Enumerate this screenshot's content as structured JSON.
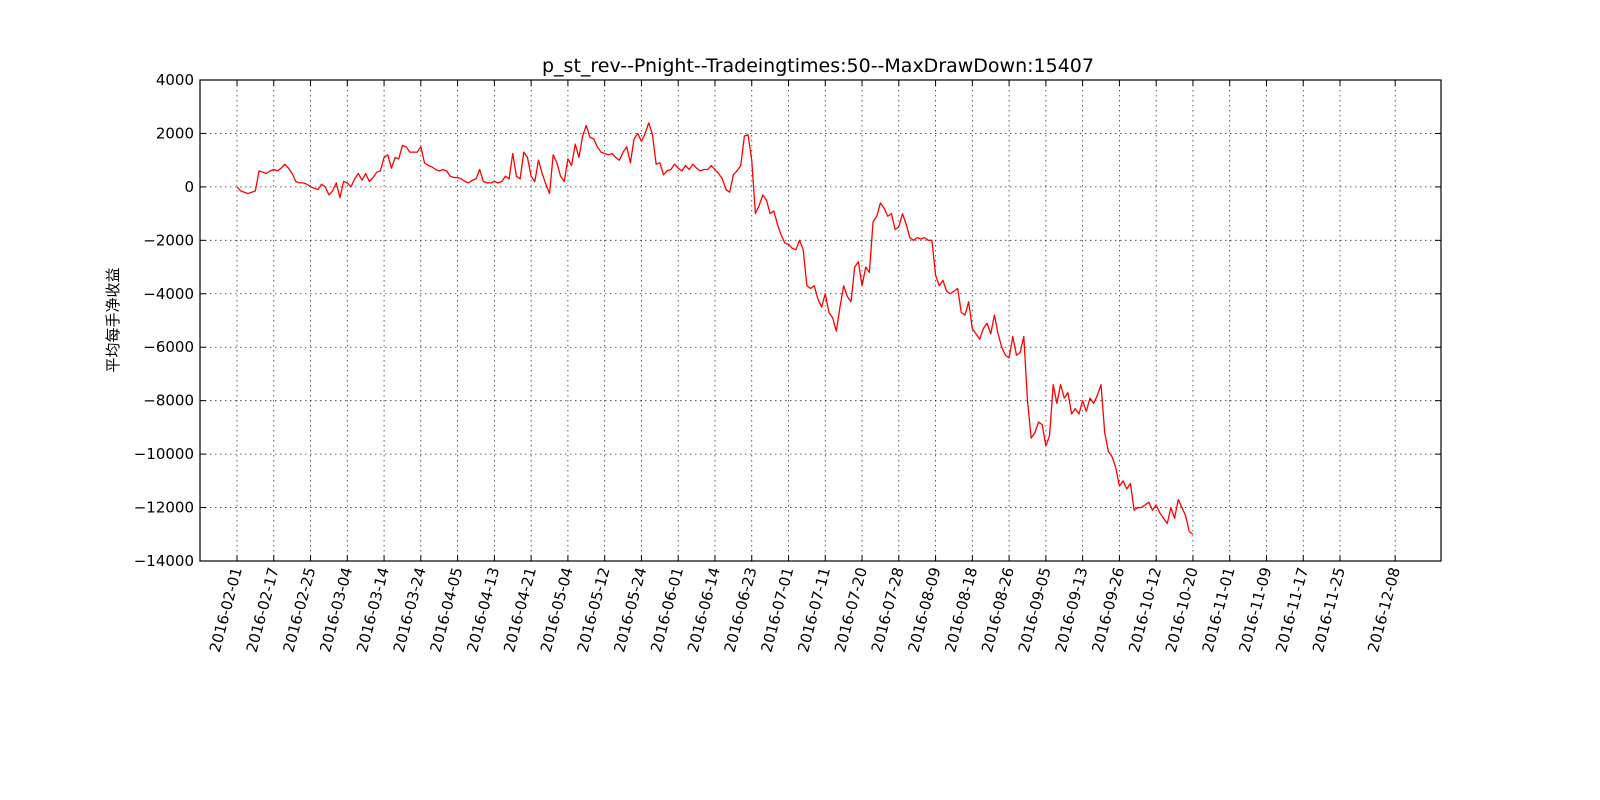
{
  "chart_data": {
    "type": "line",
    "title": "p_st_rev--Pnight--Tradeingtimes:50--MaxDrawDown:15407",
    "xlabel": "",
    "ylabel": "平均每手净收益",
    "ylim": [
      -14000,
      4000
    ],
    "yticks": [
      4000,
      2000,
      0,
      -2000,
      -4000,
      -6000,
      -8000,
      -10000,
      -12000,
      -14000
    ],
    "ytick_labels": [
      "4000",
      "2000",
      "0",
      "−2000",
      "−4000",
      "−6000",
      "−8000",
      "−10000",
      "−12000",
      "−14000"
    ],
    "x_index_range": [
      0,
      202
    ],
    "xticks": [
      {
        "index": 0,
        "label": "2016-02-01"
      },
      {
        "index": 10,
        "label": "2016-02-17"
      },
      {
        "index": 20,
        "label": "2016-02-25"
      },
      {
        "index": 30,
        "label": "2016-03-04"
      },
      {
        "index": 40,
        "label": "2016-03-14"
      },
      {
        "index": 50,
        "label": "2016-03-24"
      },
      {
        "index": 60,
        "label": "2016-04-05"
      },
      {
        "index": 70,
        "label": "2016-04-13"
      },
      {
        "index": 80,
        "label": "2016-04-21"
      },
      {
        "index": 90,
        "label": "2016-05-04"
      },
      {
        "index": 100,
        "label": "2016-05-12"
      },
      {
        "index": 110,
        "label": "2016-05-24"
      },
      {
        "index": 120,
        "label": "2016-06-01"
      },
      {
        "index": 130,
        "label": "2016-06-14"
      },
      {
        "index": 140,
        "label": "2016-06-23"
      },
      {
        "index": 150,
        "label": "2016-07-01"
      },
      {
        "index": 160,
        "label": "2016-07-11"
      },
      {
        "index": 170,
        "label": "2016-07-20"
      },
      {
        "index": 180,
        "label": "2016-07-28"
      },
      {
        "index": 190,
        "label": "2016-08-09"
      },
      {
        "index": 200,
        "label": "2016-08-18"
      },
      {
        "index": 210,
        "label": "2016-08-26"
      },
      {
        "index": 220,
        "label": "2016-09-05"
      },
      {
        "index": 230,
        "label": "2016-09-13"
      },
      {
        "index": 240,
        "label": "2016-09-26"
      },
      {
        "index": 250,
        "label": "2016-10-12"
      },
      {
        "index": 260,
        "label": "2016-10-20"
      },
      {
        "index": 270,
        "label": "2016-11-01"
      },
      {
        "index": 280,
        "label": "2016-11-09"
      },
      {
        "index": 290,
        "label": "2016-11-17"
      },
      {
        "index": 300,
        "label": "2016-11-25"
      },
      {
        "index": 315,
        "label": "2016-12-08"
      }
    ],
    "grid": true,
    "legend": "none",
    "series": [
      {
        "color": "#ff0000",
        "points": [
          [
            0,
            0
          ],
          [
            1,
            -150
          ],
          [
            2,
            -200
          ],
          [
            3,
            -250
          ],
          [
            4,
            -200
          ],
          [
            5,
            -150
          ],
          [
            6,
            600
          ],
          [
            7,
            550
          ],
          [
            8,
            500
          ],
          [
            9,
            600
          ],
          [
            10,
            650
          ],
          [
            11,
            600
          ],
          [
            12,
            700
          ],
          [
            13,
            850
          ],
          [
            14,
            700
          ],
          [
            15,
            500
          ],
          [
            16,
            200
          ],
          [
            17,
            150
          ],
          [
            18,
            150
          ],
          [
            19,
            100
          ],
          [
            20,
            0
          ],
          [
            21,
            -50
          ],
          [
            22,
            -100
          ],
          [
            23,
            100
          ],
          [
            24,
            0
          ],
          [
            25,
            -300
          ],
          [
            26,
            -150
          ],
          [
            27,
            150
          ],
          [
            28,
            -400
          ],
          [
            29,
            200
          ],
          [
            30,
            150
          ],
          [
            31,
            0
          ],
          [
            32,
            300
          ],
          [
            33,
            500
          ],
          [
            34,
            250
          ],
          [
            35,
            500
          ],
          [
            36,
            200
          ],
          [
            37,
            350
          ],
          [
            38,
            550
          ],
          [
            39,
            600
          ],
          [
            40,
            1100
          ],
          [
            41,
            1200
          ],
          [
            42,
            700
          ],
          [
            43,
            1100
          ],
          [
            44,
            1050
          ],
          [
            45,
            1550
          ],
          [
            46,
            1500
          ],
          [
            47,
            1300
          ],
          [
            48,
            1300
          ],
          [
            49,
            1300
          ],
          [
            50,
            1500
          ],
          [
            51,
            900
          ],
          [
            52,
            800
          ],
          [
            53,
            750
          ],
          [
            54,
            650
          ],
          [
            55,
            600
          ],
          [
            56,
            650
          ],
          [
            57,
            600
          ],
          [
            58,
            400
          ],
          [
            59,
            350
          ],
          [
            60,
            350
          ],
          [
            61,
            300
          ],
          [
            62,
            200
          ],
          [
            63,
            150
          ],
          [
            64,
            250
          ],
          [
            65,
            300
          ],
          [
            66,
            650
          ],
          [
            67,
            200
          ],
          [
            68,
            150
          ],
          [
            69,
            150
          ],
          [
            70,
            200
          ],
          [
            71,
            150
          ],
          [
            72,
            200
          ],
          [
            73,
            400
          ],
          [
            74,
            300
          ],
          [
            75,
            1250
          ],
          [
            76,
            400
          ],
          [
            77,
            300
          ],
          [
            78,
            1300
          ],
          [
            79,
            1100
          ],
          [
            80,
            400
          ],
          [
            81,
            200
          ],
          [
            82,
            1000
          ],
          [
            83,
            500
          ],
          [
            84,
            100
          ],
          [
            85,
            -250
          ],
          [
            86,
            1200
          ],
          [
            87,
            900
          ],
          [
            88,
            400
          ],
          [
            89,
            200
          ],
          [
            90,
            1050
          ],
          [
            91,
            800
          ],
          [
            92,
            1600
          ],
          [
            93,
            1100
          ],
          [
            94,
            1900
          ],
          [
            95,
            2300
          ],
          [
            96,
            1850
          ],
          [
            97,
            1800
          ],
          [
            98,
            1500
          ],
          [
            99,
            1300
          ],
          [
            100,
            1250
          ],
          [
            101,
            1200
          ],
          [
            102,
            1250
          ],
          [
            103,
            1100
          ],
          [
            104,
            1000
          ],
          [
            105,
            1300
          ],
          [
            106,
            1500
          ],
          [
            107,
            900
          ],
          [
            108,
            1800
          ],
          [
            109,
            2000
          ],
          [
            110,
            1700
          ],
          [
            111,
            2000
          ],
          [
            112,
            2400
          ],
          [
            113,
            1950
          ],
          [
            114,
            850
          ],
          [
            115,
            900
          ],
          [
            116,
            450
          ],
          [
            117,
            600
          ],
          [
            118,
            650
          ],
          [
            119,
            850
          ],
          [
            120,
            700
          ],
          [
            121,
            600
          ],
          [
            122,
            800
          ],
          [
            123,
            650
          ],
          [
            124,
            850
          ],
          [
            125,
            700
          ],
          [
            126,
            600
          ],
          [
            127,
            650
          ],
          [
            128,
            650
          ],
          [
            129,
            800
          ],
          [
            130,
            650
          ],
          [
            131,
            500
          ],
          [
            132,
            300
          ],
          [
            133,
            -100
          ],
          [
            134,
            -200
          ],
          [
            135,
            450
          ],
          [
            136,
            600
          ],
          [
            137,
            800
          ],
          [
            138,
            1900
          ],
          [
            139,
            1950
          ],
          [
            140,
            1000
          ],
          [
            141,
            -1000
          ],
          [
            142,
            -700
          ],
          [
            143,
            -300
          ],
          [
            144,
            -500
          ],
          [
            145,
            -1000
          ],
          [
            146,
            -900
          ],
          [
            147,
            -1400
          ],
          [
            148,
            -1800
          ],
          [
            149,
            -2100
          ],
          [
            150,
            -2150
          ],
          [
            151,
            -2300
          ],
          [
            152,
            -2350
          ],
          [
            153,
            -2000
          ],
          [
            154,
            -2350
          ],
          [
            155,
            -3700
          ],
          [
            156,
            -3800
          ],
          [
            157,
            -3700
          ],
          [
            158,
            -4200
          ],
          [
            159,
            -4500
          ],
          [
            160,
            -4000
          ],
          [
            161,
            -4700
          ],
          [
            162,
            -4900
          ],
          [
            163,
            -5400
          ],
          [
            164,
            -4500
          ],
          [
            165,
            -3700
          ],
          [
            166,
            -4100
          ],
          [
            167,
            -4300
          ],
          [
            168,
            -3000
          ],
          [
            169,
            -2800
          ],
          [
            170,
            -3700
          ],
          [
            171,
            -3000
          ],
          [
            172,
            -3200
          ],
          [
            173,
            -1300
          ],
          [
            174,
            -1100
          ],
          [
            175,
            -600
          ],
          [
            176,
            -800
          ],
          [
            177,
            -1100
          ],
          [
            178,
            -1000
          ],
          [
            179,
            -1600
          ],
          [
            180,
            -1500
          ],
          [
            181,
            -1000
          ],
          [
            182,
            -1400
          ],
          [
            183,
            -1900
          ],
          [
            184,
            -2000
          ],
          [
            185,
            -1900
          ],
          [
            186,
            -1950
          ],
          [
            187,
            -1900
          ],
          [
            188,
            -2000
          ],
          [
            189,
            -2000
          ],
          [
            190,
            -3300
          ],
          [
            191,
            -3700
          ],
          [
            192,
            -3500
          ],
          [
            193,
            -3900
          ],
          [
            194,
            -4000
          ],
          [
            195,
            -3900
          ],
          [
            196,
            -3800
          ],
          [
            197,
            -4700
          ],
          [
            198,
            -4800
          ],
          [
            199,
            -4300
          ],
          [
            200,
            -5300
          ],
          [
            201,
            -5500
          ],
          [
            202,
            -5700
          ],
          [
            203,
            -5300
          ],
          [
            204,
            -5100
          ],
          [
            205,
            -5500
          ],
          [
            206,
            -4800
          ],
          [
            207,
            -5500
          ],
          [
            208,
            -6000
          ],
          [
            209,
            -6300
          ],
          [
            210,
            -6400
          ],
          [
            211,
            -5600
          ],
          [
            212,
            -6300
          ],
          [
            213,
            -6200
          ],
          [
            214,
            -5600
          ],
          [
            215,
            -8000
          ],
          [
            216,
            -9400
          ],
          [
            217,
            -9200
          ],
          [
            218,
            -8800
          ],
          [
            219,
            -8900
          ],
          [
            220,
            -9700
          ],
          [
            221,
            -9300
          ],
          [
            222,
            -7400
          ],
          [
            223,
            -8100
          ],
          [
            224,
            -7400
          ],
          [
            225,
            -7900
          ],
          [
            226,
            -7700
          ],
          [
            227,
            -8500
          ],
          [
            228,
            -8300
          ],
          [
            229,
            -8500
          ],
          [
            230,
            -8000
          ],
          [
            231,
            -8400
          ],
          [
            232,
            -7900
          ],
          [
            233,
            -8100
          ],
          [
            234,
            -7800
          ],
          [
            235,
            -7400
          ],
          [
            236,
            -9200
          ],
          [
            237,
            -9900
          ],
          [
            238,
            -10100
          ],
          [
            239,
            -10500
          ],
          [
            240,
            -11200
          ],
          [
            241,
            -11000
          ],
          [
            242,
            -11300
          ],
          [
            243,
            -11100
          ],
          [
            244,
            -12100
          ],
          [
            245,
            -12000
          ],
          [
            246,
            -12000
          ],
          [
            247,
            -11900
          ],
          [
            248,
            -11800
          ],
          [
            249,
            -12100
          ],
          [
            250,
            -11900
          ],
          [
            251,
            -12200
          ],
          [
            252,
            -12400
          ],
          [
            253,
            -12600
          ],
          [
            254,
            -12000
          ],
          [
            255,
            -12400
          ],
          [
            256,
            -11700
          ],
          [
            257,
            -12000
          ],
          [
            258,
            -12300
          ],
          [
            259,
            -12900
          ],
          [
            260,
            -13000
          ]
        ]
      }
    ]
  }
}
